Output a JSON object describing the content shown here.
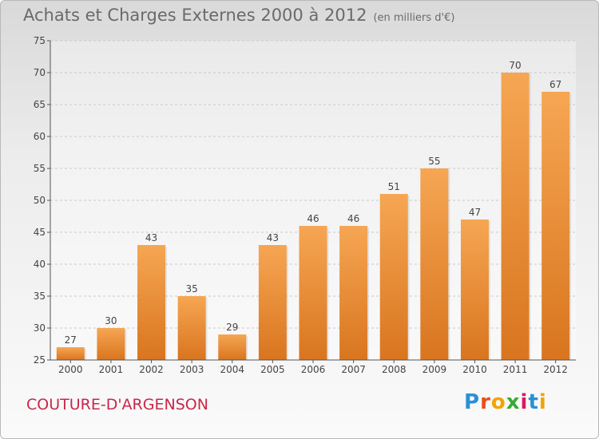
{
  "header": {
    "title": "Achats et Charges Externes 2000 à 2012",
    "subtitle": "(en milliers d'€)"
  },
  "footer": {
    "commune": "COUTURE-D'ARGENSON",
    "brand": "Proxiti",
    "brand_colors": [
      "#2b8fd6",
      "#e94e1b",
      "#f2a300",
      "#3aaa35",
      "#d81b60",
      "#2b8fd6",
      "#f2a300"
    ]
  },
  "chart_data": {
    "type": "bar",
    "title": "Achats et Charges Externes 2000 à 2012",
    "subtitle": "(en milliers d'€)",
    "categories": [
      "2000",
      "2001",
      "2002",
      "2003",
      "2004",
      "2005",
      "2006",
      "2007",
      "2008",
      "2009",
      "2010",
      "2011",
      "2012"
    ],
    "values": [
      27,
      30,
      43,
      35,
      29,
      43,
      46,
      46,
      51,
      55,
      47,
      70,
      67
    ],
    "ylim": [
      25,
      75
    ],
    "yticks": [
      25,
      30,
      35,
      40,
      45,
      50,
      55,
      60,
      65,
      70,
      75
    ],
    "grid": true,
    "bar_color_light": "#f6a653",
    "bar_color_dark": "#d9751f"
  }
}
